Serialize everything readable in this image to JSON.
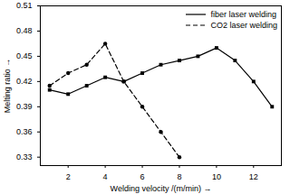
{
  "chart_data": {
    "type": "line",
    "x_label": "Welding velocity /(m/min)",
    "y_label": "Melting ratio",
    "x": [
      1,
      2,
      3,
      4,
      5,
      6,
      7,
      8,
      9,
      10,
      11,
      12,
      13
    ],
    "series": [
      {
        "name": "fiber laser welding",
        "color": "#000000",
        "line_style": "solid",
        "marker": "square",
        "values": [
          0.41,
          0.405,
          0.415,
          0.425,
          0.42,
          0.43,
          0.44,
          0.445,
          0.45,
          0.46,
          0.445,
          0.42,
          0.39
        ]
      },
      {
        "name": "CO2 laser welding",
        "color": "#000000",
        "line_style": "dashed",
        "marker": "circle",
        "values": [
          0.415,
          0.43,
          0.44,
          0.465,
          0.42,
          0.39,
          0.36,
          0.33,
          null,
          null,
          null,
          null,
          null
        ]
      }
    ],
    "xlim": [
      0.5,
      13.5
    ],
    "xticks": [
      2,
      4,
      6,
      8,
      10,
      12
    ],
    "ylim": [
      0.32,
      0.51
    ],
    "yticks": [
      0.33,
      0.36,
      0.39,
      0.42,
      0.45,
      0.48,
      0.51
    ],
    "legend": "upper right",
    "grid": false
  }
}
